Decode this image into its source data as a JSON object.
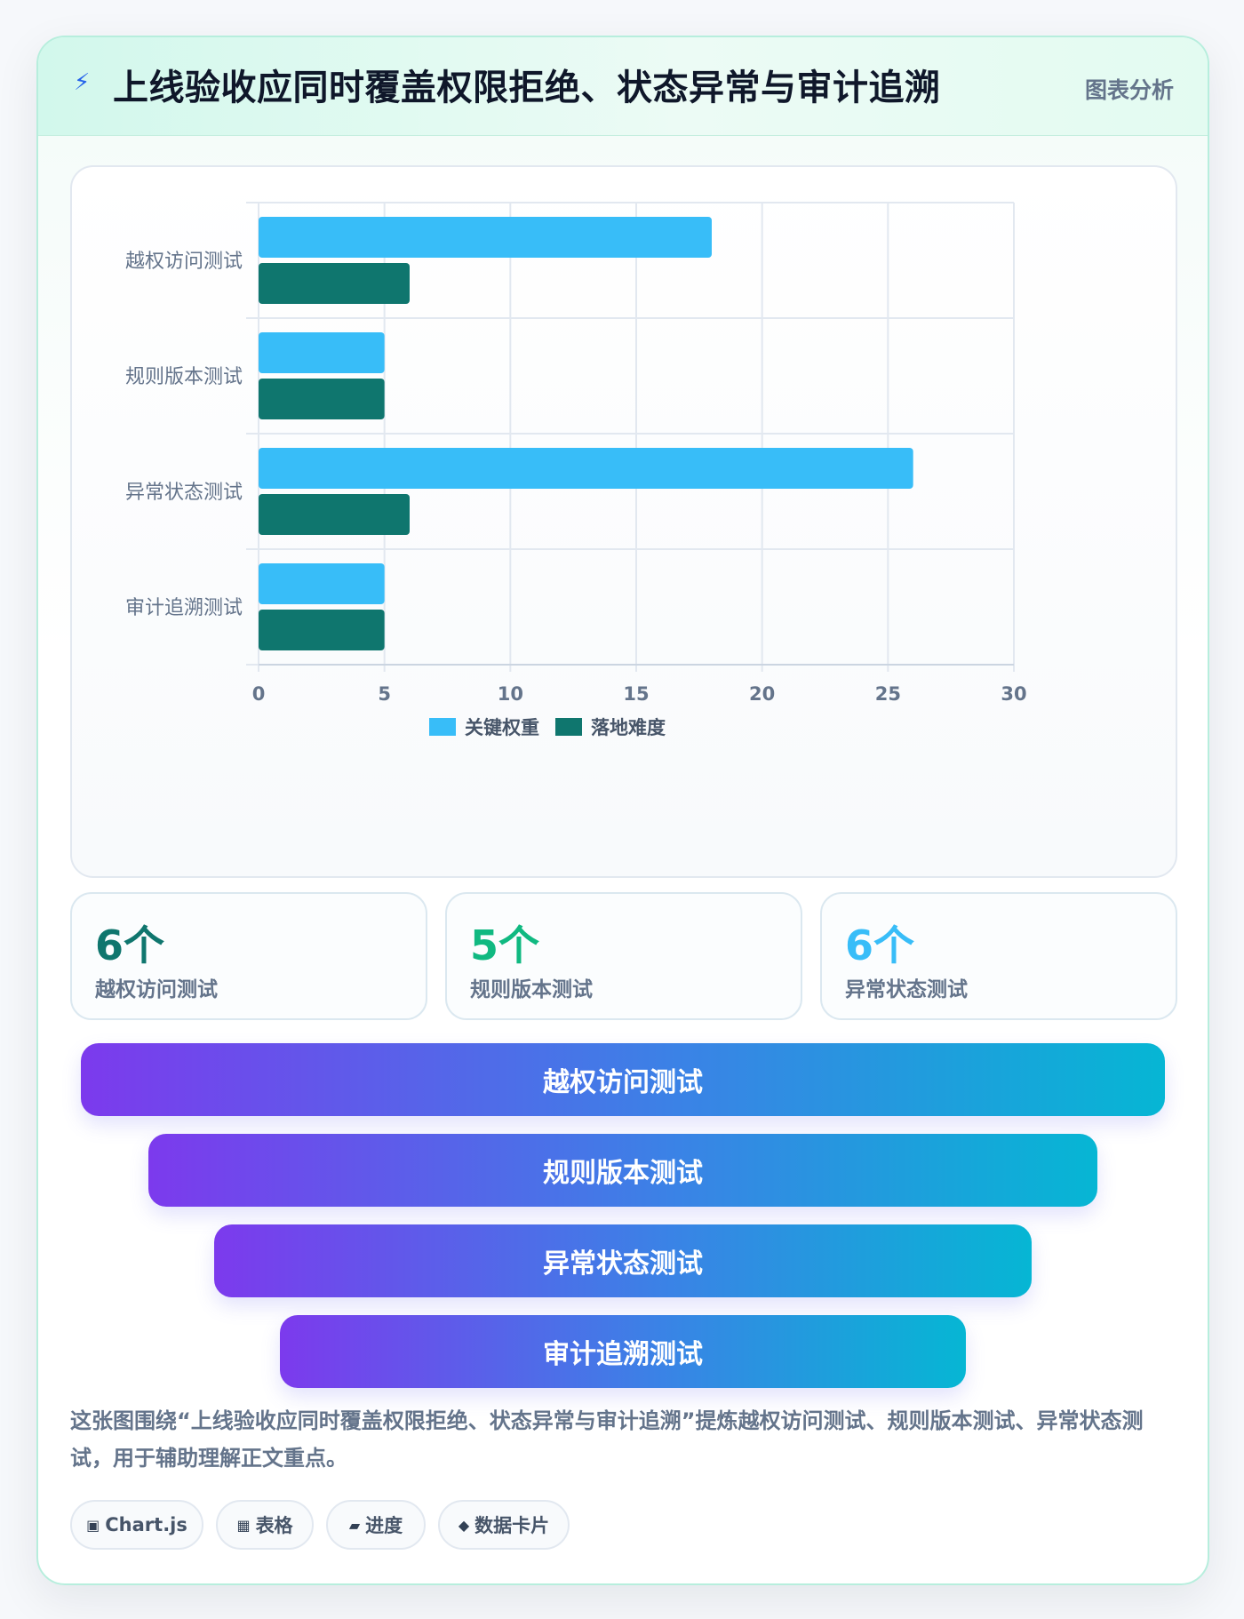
{
  "header": {
    "icon": "lightning-bolt-icon",
    "title": "上线验收应同时覆盖权限拒绝、状态异常与审计追溯",
    "badge": "图表分析"
  },
  "chart_data": {
    "type": "bar",
    "orientation": "horizontal",
    "categories": [
      "越权访问测试",
      "规则版本测试",
      "异常状态测试",
      "审计追溯测试"
    ],
    "series": [
      {
        "name": "关键权重",
        "color": "#38bdf8",
        "values": [
          18,
          5,
          26,
          5
        ]
      },
      {
        "name": "落地难度",
        "color": "#0f766e",
        "values": [
          6,
          5,
          6,
          5
        ]
      }
    ],
    "xlim": [
      0,
      30
    ],
    "xticks": [
      0,
      5,
      10,
      15,
      20,
      25,
      30
    ],
    "grid": true,
    "legend_position": "bottom"
  },
  "stats": [
    {
      "value": "6个",
      "label": "越权访问测试",
      "color": "#0f766e"
    },
    {
      "value": "5个",
      "label": "规则版本测试",
      "color": "#10b981"
    },
    {
      "value": "6个",
      "label": "异常状态测试",
      "color": "#38bdf8"
    }
  ],
  "funnel": [
    "越权访问测试",
    "规则版本测试",
    "异常状态测试",
    "审计追溯测试"
  ],
  "description": "这张图围绕“上线验收应同时覆盖权限拒绝、状态异常与审计追溯”提炼越权访问测试、规则版本测试、异常状态测试，用于辅助理解正文重点。",
  "tags": [
    {
      "icon": "▣",
      "label": "Chart.js"
    },
    {
      "icon": "▦",
      "label": "表格"
    },
    {
      "icon": "▰",
      "label": "进度"
    },
    {
      "icon": "◆",
      "label": "数据卡片"
    }
  ]
}
